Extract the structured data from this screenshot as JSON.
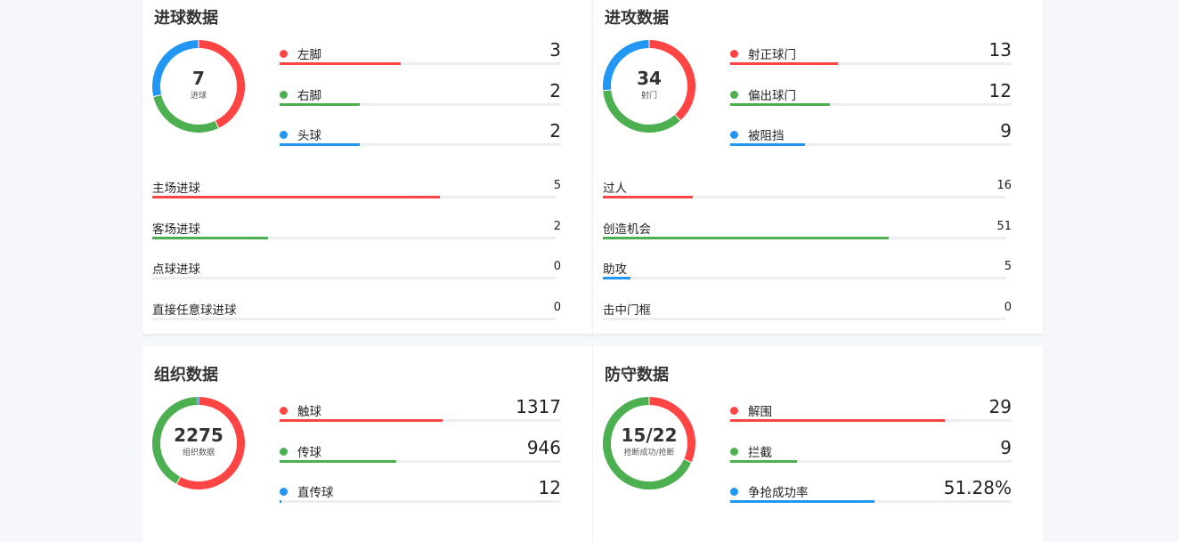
{
  "colors": {
    "red": "#ff4444",
    "green": "#4caf50",
    "blue": "#2196f3",
    "track": "#eceef2"
  },
  "cards": [
    {
      "title": "进球数据",
      "donut": {
        "value": "7",
        "label": "进球",
        "segments": [
          {
            "color": "red",
            "value": 3
          },
          {
            "color": "green",
            "value": 2
          },
          {
            "color": "blue",
            "value": 2
          }
        ]
      },
      "items": [
        {
          "label": "左脚",
          "value": "3",
          "color": "red",
          "percent": 42.9
        },
        {
          "label": "右脚",
          "value": "2",
          "color": "green",
          "percent": 28.6
        },
        {
          "label": "头球",
          "value": "2",
          "color": "blue",
          "percent": 28.6
        }
      ],
      "rows": [
        {
          "label": "主场进球",
          "value": "5",
          "color": "red",
          "percent": 71.4
        },
        {
          "label": "客场进球",
          "value": "2",
          "color": "green",
          "percent": 28.6
        },
        {
          "label": "点球进球",
          "value": "0",
          "color": "red",
          "percent": 0
        },
        {
          "label": "直接任意球进球",
          "value": "0",
          "color": "red",
          "percent": 0
        }
      ]
    },
    {
      "title": "进攻数据",
      "donut": {
        "value": "34",
        "label": "射门",
        "segments": [
          {
            "color": "red",
            "value": 13
          },
          {
            "color": "green",
            "value": 12
          },
          {
            "color": "blue",
            "value": 9
          }
        ]
      },
      "items": [
        {
          "label": "射正球门",
          "value": "13",
          "color": "red",
          "percent": 38.2
        },
        {
          "label": "偏出球门",
          "value": "12",
          "color": "green",
          "percent": 35.3
        },
        {
          "label": "被阻挡",
          "value": "9",
          "color": "blue",
          "percent": 26.5
        }
      ],
      "rows": [
        {
          "label": "过人",
          "value": "16",
          "color": "red",
          "percent": 22.2
        },
        {
          "label": "创造机会",
          "value": "51",
          "color": "green",
          "percent": 70.8
        },
        {
          "label": "助攻",
          "value": "5",
          "color": "blue",
          "percent": 6.9
        },
        {
          "label": "击中门框",
          "value": "0",
          "color": "red",
          "percent": 0
        }
      ]
    },
    {
      "title": "组织数据",
      "donut": {
        "value": "2275",
        "label": "组织数据",
        "segments": [
          {
            "color": "red",
            "value": 1317
          },
          {
            "color": "green",
            "value": 946
          },
          {
            "color": "blue",
            "value": 12
          }
        ]
      },
      "items": [
        {
          "label": "触球",
          "value": "1317",
          "color": "red",
          "percent": 57.9
        },
        {
          "label": "传球",
          "value": "946",
          "color": "green",
          "percent": 41.6
        },
        {
          "label": "直传球",
          "value": "12",
          "color": "blue",
          "percent": 0.5
        }
      ],
      "rows": []
    },
    {
      "title": "防守数据",
      "donut": {
        "value": "15/22",
        "label": "抢断成功/抢断",
        "segments": [
          {
            "color": "red",
            "value": 7
          },
          {
            "color": "green",
            "value": 15
          }
        ]
      },
      "items": [
        {
          "label": "解围",
          "value": "29",
          "color": "red",
          "percent": 76.3
        },
        {
          "label": "拦截",
          "value": "9",
          "color": "green",
          "percent": 23.7
        },
        {
          "label": "争抢成功率",
          "value": "51.28%",
          "color": "blue",
          "percent": 51.28
        }
      ],
      "rows": []
    }
  ]
}
